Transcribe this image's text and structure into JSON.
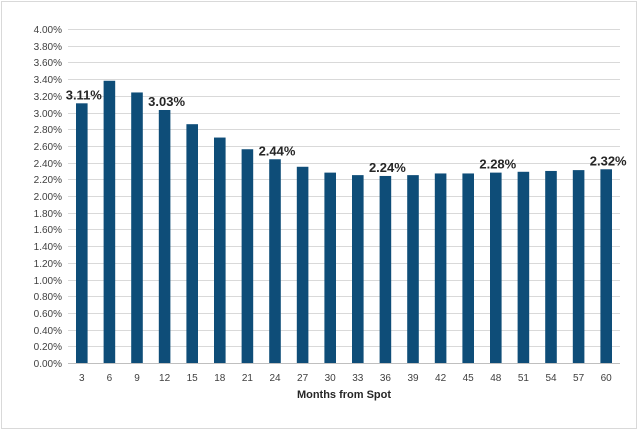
{
  "chart_data": {
    "type": "bar",
    "title": "",
    "xlabel": "Months from Spot",
    "ylabel": "",
    "ylim": [
      0,
      4.0
    ],
    "y_tick_step": 0.2,
    "y_tick_format": "percent_2dp",
    "grid": "horizontal",
    "bar_color": "#0e4d78",
    "categories": [
      "3",
      "6",
      "9",
      "12",
      "15",
      "18",
      "21",
      "24",
      "27",
      "30",
      "33",
      "36",
      "39",
      "42",
      "45",
      "48",
      "51",
      "54",
      "57",
      "60"
    ],
    "values": [
      3.11,
      3.38,
      3.24,
      3.03,
      2.86,
      2.7,
      2.56,
      2.44,
      2.35,
      2.28,
      2.25,
      2.24,
      2.25,
      2.27,
      2.27,
      2.28,
      2.29,
      2.3,
      2.31,
      2.32
    ],
    "data_labels": [
      {
        "index": 0,
        "text": "3.11%"
      },
      {
        "index": 3,
        "text": "3.03%"
      },
      {
        "index": 7,
        "text": "2.44%"
      },
      {
        "index": 11,
        "text": "2.24%"
      },
      {
        "index": 15,
        "text": "2.28%"
      },
      {
        "index": 19,
        "text": "2.32%"
      }
    ]
  }
}
